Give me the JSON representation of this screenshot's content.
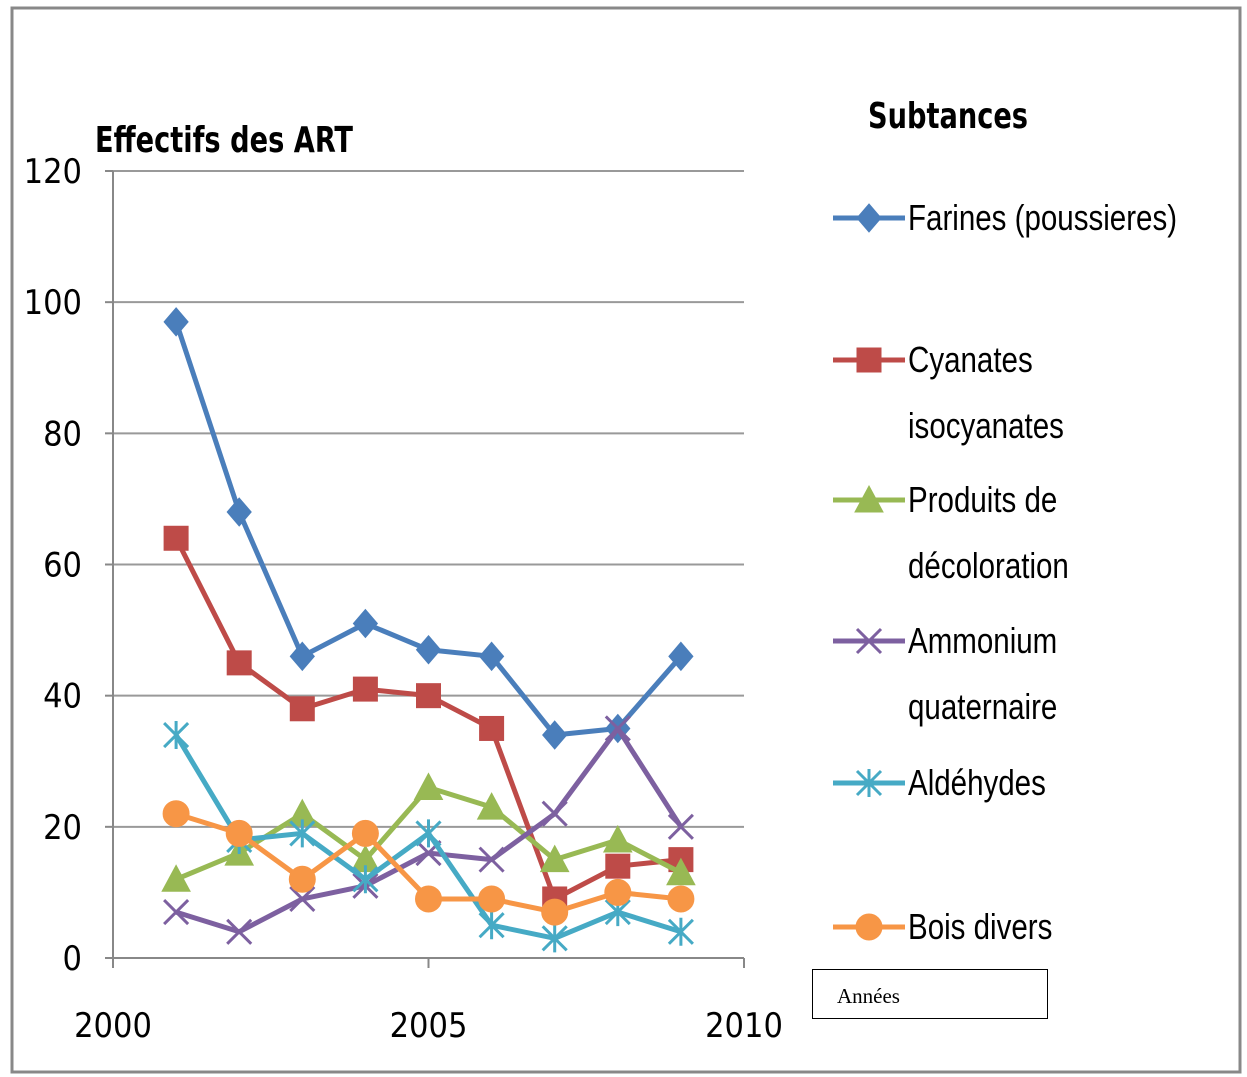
{
  "chart_data": {
    "type": "line",
    "title": "Effectifs des ART",
    "legend_title": "Subtances",
    "x_label": "Années",
    "x": [
      2001,
      2002,
      2003,
      2004,
      2005,
      2006,
      2007,
      2008,
      2009
    ],
    "xlim": [
      2000,
      2010
    ],
    "xticks": [
      2000,
      2005,
      2010
    ],
    "ylim": [
      0,
      120
    ],
    "yticks": [
      0,
      20,
      40,
      60,
      80,
      100,
      120
    ],
    "grid": true,
    "legend": "right",
    "series": [
      {
        "name": "Farines (poussieres)",
        "color": "#4a7ebb",
        "marker": "diamond",
        "values": [
          97,
          68,
          46,
          51,
          47,
          46,
          34,
          35,
          46
        ]
      },
      {
        "name": "Cyanates isocyanates",
        "color": "#be4b48",
        "marker": "square",
        "values": [
          64,
          45,
          38,
          41,
          40,
          35,
          9,
          14,
          15
        ]
      },
      {
        "name": "Produits de décoloration",
        "color": "#98b954",
        "marker": "triangle",
        "values": [
          12,
          16,
          22,
          15,
          26,
          23,
          15,
          18,
          13
        ]
      },
      {
        "name": "Ammonium quaternaire",
        "color": "#7d60a0",
        "marker": "x",
        "values": [
          7,
          4,
          9,
          11,
          16,
          15,
          22,
          35,
          20
        ]
      },
      {
        "name": "Aldéhydes",
        "color": "#46aac5",
        "marker": "star",
        "values": [
          34,
          18,
          19,
          12,
          19,
          5,
          3,
          7,
          4
        ]
      },
      {
        "name": "Bois divers",
        "color": "#f79646",
        "marker": "circle",
        "values": [
          22,
          19,
          12,
          19,
          9,
          9,
          7,
          10,
          9
        ]
      }
    ]
  }
}
